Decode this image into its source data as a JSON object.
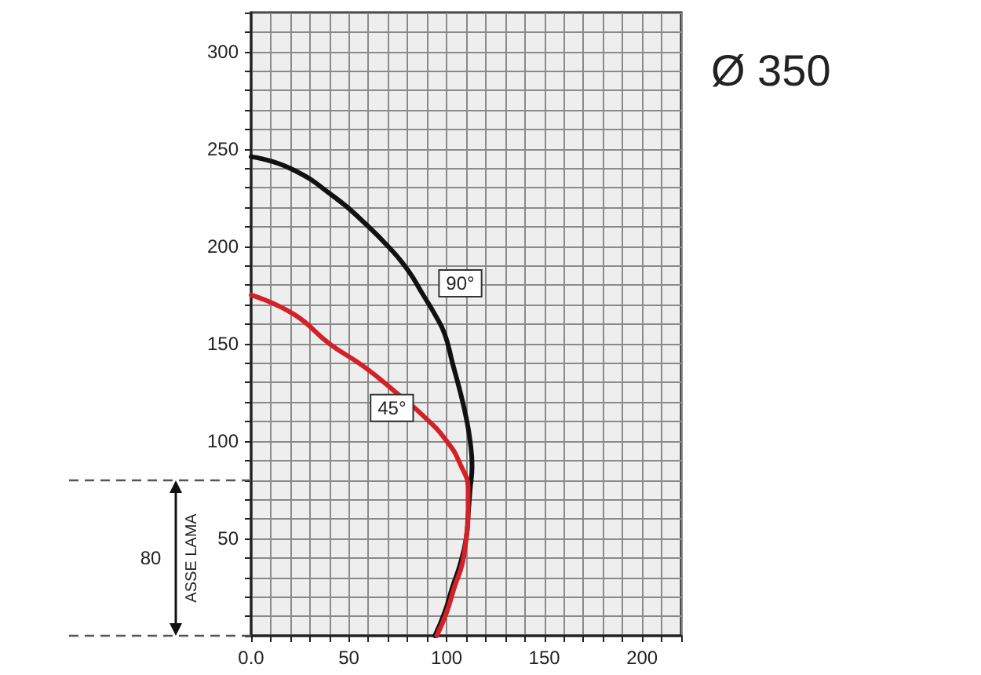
{
  "chart_data": {
    "type": "line",
    "title": "Ø 350",
    "series": [
      {
        "color": "#111111",
        "x": [
          0,
          20,
          43,
          58,
          70,
          80,
          88,
          94,
          99,
          103,
          107,
          110,
          112,
          113,
          112,
          111,
          110,
          107,
          103,
          99,
          94
        ],
        "values": [
          246,
          240,
          225,
          212,
          200,
          188,
          175,
          165,
          155,
          140,
          125,
          112,
          100,
          87,
          75,
          62,
          50,
          37,
          25,
          12,
          0
        ]
      },
      {
        "color": "#d42127",
        "x": [
          0,
          22,
          40,
          58,
          74,
          88,
          100,
          107,
          111,
          111,
          110,
          108,
          104,
          100,
          95
        ],
        "values": [
          175,
          165,
          150,
          138,
          125,
          113,
          100,
          88,
          75,
          62,
          50,
          37,
          25,
          12,
          0
        ]
      }
    ],
    "annotations": [
      {
        "text": "90°",
        "x": 107,
        "y": 181
      },
      {
        "text": "45°",
        "x": 72,
        "y": 117
      },
      "80",
      "ASSE LAMA"
    ],
    "xlim": [
      0,
      220
    ],
    "ylim": [
      0,
      320
    ],
    "xticks": [
      {
        "value": 0,
        "label": "0.0"
      },
      {
        "value": 10,
        "label": null
      },
      {
        "value": 20,
        "label": null
      },
      {
        "value": 30,
        "label": null
      },
      {
        "value": 40,
        "label": null
      },
      50,
      {
        "value": 60,
        "label": null
      },
      {
        "value": 70,
        "label": null
      },
      {
        "value": 80,
        "label": null
      },
      {
        "value": 90,
        "label": null
      },
      100,
      {
        "value": 110,
        "label": null
      },
      {
        "value": 120,
        "label": null
      },
      {
        "value": 130,
        "label": null
      },
      {
        "value": 140,
        "label": null
      },
      150,
      {
        "value": 160,
        "label": null
      },
      {
        "value": 170,
        "label": null
      },
      {
        "value": 180,
        "label": null
      },
      {
        "value": 190,
        "label": null
      },
      200,
      {
        "value": 210,
        "label": null
      },
      {
        "value": 220,
        "label": null
      }
    ],
    "yticks": [
      {
        "value": 0,
        "label": null
      },
      {
        "value": 10,
        "label": null
      },
      {
        "value": 20,
        "label": null
      },
      {
        "value": 30,
        "label": null
      },
      {
        "value": 40,
        "label": null
      },
      50,
      {
        "value": 60,
        "label": null
      },
      {
        "value": 70,
        "label": null
      },
      {
        "value": 80,
        "label": null
      },
      {
        "value": 90,
        "label": null
      },
      100,
      {
        "value": 110,
        "label": null
      },
      {
        "value": 120,
        "label": null
      },
      {
        "value": 130,
        "label": null
      },
      {
        "value": 140,
        "label": null
      },
      150,
      {
        "value": 160,
        "label": null
      },
      {
        "value": 170,
        "label": null
      },
      {
        "value": 180,
        "label": null
      },
      {
        "value": 190,
        "label": null
      },
      200,
      {
        "value": 210,
        "label": null
      },
      {
        "value": 220,
        "label": null
      },
      {
        "value": 230,
        "label": null
      },
      {
        "value": 240,
        "label": null
      },
      250,
      {
        "value": 260,
        "label": null
      },
      {
        "value": 270,
        "label": null
      },
      {
        "value": 280,
        "label": null
      },
      {
        "value": 290,
        "label": null
      },
      300,
      {
        "value": 310,
        "label": null
      },
      {
        "value": 320,
        "label": null
      }
    ],
    "grid": true,
    "marker": "none",
    "line_style": "solid"
  }
}
